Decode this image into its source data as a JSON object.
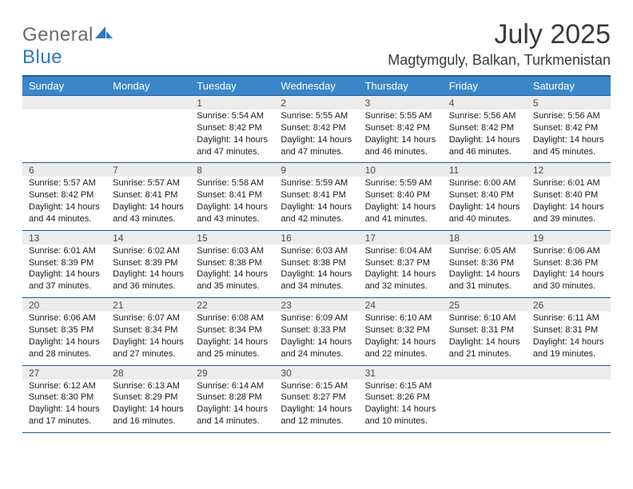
{
  "logo": {
    "general": "General",
    "blue": "Blue"
  },
  "title": "July 2025",
  "location": "Magtymguly, Balkan, Turkmenistan",
  "colors": {
    "header_bg": "#3b86c8",
    "header_text": "#ffffff",
    "rule": "#1f5d99",
    "num_bg": "#ececec",
    "logo_gray": "#6b6b6b",
    "logo_blue": "#2e79c0"
  },
  "dow": [
    "Sunday",
    "Monday",
    "Tuesday",
    "Wednesday",
    "Thursday",
    "Friday",
    "Saturday"
  ],
  "weeks": [
    [
      {
        "n": "",
        "t": ""
      },
      {
        "n": "",
        "t": ""
      },
      {
        "n": "1",
        "t": "Sunrise: 5:54 AM\nSunset: 8:42 PM\nDaylight: 14 hours and 47 minutes."
      },
      {
        "n": "2",
        "t": "Sunrise: 5:55 AM\nSunset: 8:42 PM\nDaylight: 14 hours and 47 minutes."
      },
      {
        "n": "3",
        "t": "Sunrise: 5:55 AM\nSunset: 8:42 PM\nDaylight: 14 hours and 46 minutes."
      },
      {
        "n": "4",
        "t": "Sunrise: 5:56 AM\nSunset: 8:42 PM\nDaylight: 14 hours and 46 minutes."
      },
      {
        "n": "5",
        "t": "Sunrise: 5:56 AM\nSunset: 8:42 PM\nDaylight: 14 hours and 45 minutes."
      }
    ],
    [
      {
        "n": "6",
        "t": "Sunrise: 5:57 AM\nSunset: 8:42 PM\nDaylight: 14 hours and 44 minutes."
      },
      {
        "n": "7",
        "t": "Sunrise: 5:57 AM\nSunset: 8:41 PM\nDaylight: 14 hours and 43 minutes."
      },
      {
        "n": "8",
        "t": "Sunrise: 5:58 AM\nSunset: 8:41 PM\nDaylight: 14 hours and 43 minutes."
      },
      {
        "n": "9",
        "t": "Sunrise: 5:59 AM\nSunset: 8:41 PM\nDaylight: 14 hours and 42 minutes."
      },
      {
        "n": "10",
        "t": "Sunrise: 5:59 AM\nSunset: 8:40 PM\nDaylight: 14 hours and 41 minutes."
      },
      {
        "n": "11",
        "t": "Sunrise: 6:00 AM\nSunset: 8:40 PM\nDaylight: 14 hours and 40 minutes."
      },
      {
        "n": "12",
        "t": "Sunrise: 6:01 AM\nSunset: 8:40 PM\nDaylight: 14 hours and 39 minutes."
      }
    ],
    [
      {
        "n": "13",
        "t": "Sunrise: 6:01 AM\nSunset: 8:39 PM\nDaylight: 14 hours and 37 minutes."
      },
      {
        "n": "14",
        "t": "Sunrise: 6:02 AM\nSunset: 8:39 PM\nDaylight: 14 hours and 36 minutes."
      },
      {
        "n": "15",
        "t": "Sunrise: 6:03 AM\nSunset: 8:38 PM\nDaylight: 14 hours and 35 minutes."
      },
      {
        "n": "16",
        "t": "Sunrise: 6:03 AM\nSunset: 8:38 PM\nDaylight: 14 hours and 34 minutes."
      },
      {
        "n": "17",
        "t": "Sunrise: 6:04 AM\nSunset: 8:37 PM\nDaylight: 14 hours and 32 minutes."
      },
      {
        "n": "18",
        "t": "Sunrise: 6:05 AM\nSunset: 8:36 PM\nDaylight: 14 hours and 31 minutes."
      },
      {
        "n": "19",
        "t": "Sunrise: 6:06 AM\nSunset: 8:36 PM\nDaylight: 14 hours and 30 minutes."
      }
    ],
    [
      {
        "n": "20",
        "t": "Sunrise: 6:06 AM\nSunset: 8:35 PM\nDaylight: 14 hours and 28 minutes."
      },
      {
        "n": "21",
        "t": "Sunrise: 6:07 AM\nSunset: 8:34 PM\nDaylight: 14 hours and 27 minutes."
      },
      {
        "n": "22",
        "t": "Sunrise: 6:08 AM\nSunset: 8:34 PM\nDaylight: 14 hours and 25 minutes."
      },
      {
        "n": "23",
        "t": "Sunrise: 6:09 AM\nSunset: 8:33 PM\nDaylight: 14 hours and 24 minutes."
      },
      {
        "n": "24",
        "t": "Sunrise: 6:10 AM\nSunset: 8:32 PM\nDaylight: 14 hours and 22 minutes."
      },
      {
        "n": "25",
        "t": "Sunrise: 6:10 AM\nSunset: 8:31 PM\nDaylight: 14 hours and 21 minutes."
      },
      {
        "n": "26",
        "t": "Sunrise: 6:11 AM\nSunset: 8:31 PM\nDaylight: 14 hours and 19 minutes."
      }
    ],
    [
      {
        "n": "27",
        "t": "Sunrise: 6:12 AM\nSunset: 8:30 PM\nDaylight: 14 hours and 17 minutes."
      },
      {
        "n": "28",
        "t": "Sunrise: 6:13 AM\nSunset: 8:29 PM\nDaylight: 14 hours and 16 minutes."
      },
      {
        "n": "29",
        "t": "Sunrise: 6:14 AM\nSunset: 8:28 PM\nDaylight: 14 hours and 14 minutes."
      },
      {
        "n": "30",
        "t": "Sunrise: 6:15 AM\nSunset: 8:27 PM\nDaylight: 14 hours and 12 minutes."
      },
      {
        "n": "31",
        "t": "Sunrise: 6:15 AM\nSunset: 8:26 PM\nDaylight: 14 hours and 10 minutes."
      },
      {
        "n": "",
        "t": ""
      },
      {
        "n": "",
        "t": ""
      }
    ]
  ]
}
